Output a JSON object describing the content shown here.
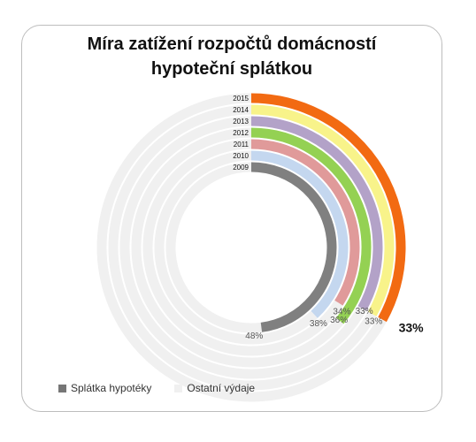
{
  "chart_data": {
    "type": "radial-bar",
    "title_line1": "Míra zatížení rozpočtů domácností",
    "title_line2": "hypoteční splátkou",
    "rings": [
      {
        "year": "2015",
        "value": 33,
        "color": "#f26a12",
        "label": "33%"
      },
      {
        "year": "2014",
        "value": 33,
        "color": "#f8f38a",
        "label": "33%"
      },
      {
        "year": "2013",
        "value": 33,
        "color": "#b3a2c8",
        "label": "33%"
      },
      {
        "year": "2012",
        "value": 36,
        "color": "#94d153",
        "label": "36%"
      },
      {
        "year": "2011",
        "value": 34,
        "color": "#e09a9a",
        "label": "34%"
      },
      {
        "year": "2010",
        "value": 38,
        "color": "#c4d7ef",
        "label": "38%"
      },
      {
        "year": "2009",
        "value": 48,
        "color": "#808080",
        "label": "48%"
      }
    ],
    "legend": [
      {
        "label": "Splátka hypotéky",
        "color": "#767676"
      },
      {
        "label": "Ostatní výdaje",
        "color": "#f0f0f0"
      }
    ],
    "remainder_color": "#f0f0f0"
  }
}
